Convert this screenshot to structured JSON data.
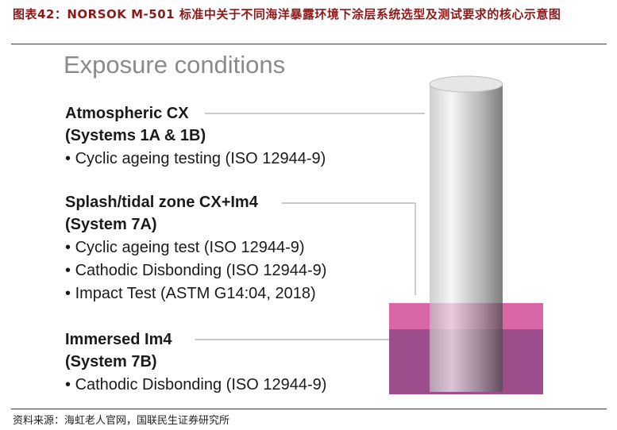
{
  "caption": "图表42：NORSOK M-501 标准中关于不同海洋暴露环境下涂层系统选型及测试要求的核心示意图",
  "heading": "Exposure conditions",
  "sections": [
    {
      "title": "Atmospheric CX",
      "system": "(Systems 1A & 1B)",
      "bullets": [
        "Cyclic ageing testing (ISO 12944-9)"
      ]
    },
    {
      "title": "Splash/tidal zone CX+Im4",
      "system": "(System 7A)",
      "bullets": [
        "Cyclic ageing test (ISO 12944-9)",
        "Cathodic Disbonding (ISO 12944-9)",
        "Impact Test (ASTM G14:04, 2018)"
      ]
    },
    {
      "title": "Immersed Im4",
      "system": "(System 7B)",
      "bullets": [
        "Cathodic Disbonding (ISO 12944-9)"
      ]
    }
  ],
  "source": "资料来源：海虹老人官网，国联民生证券研究所"
}
